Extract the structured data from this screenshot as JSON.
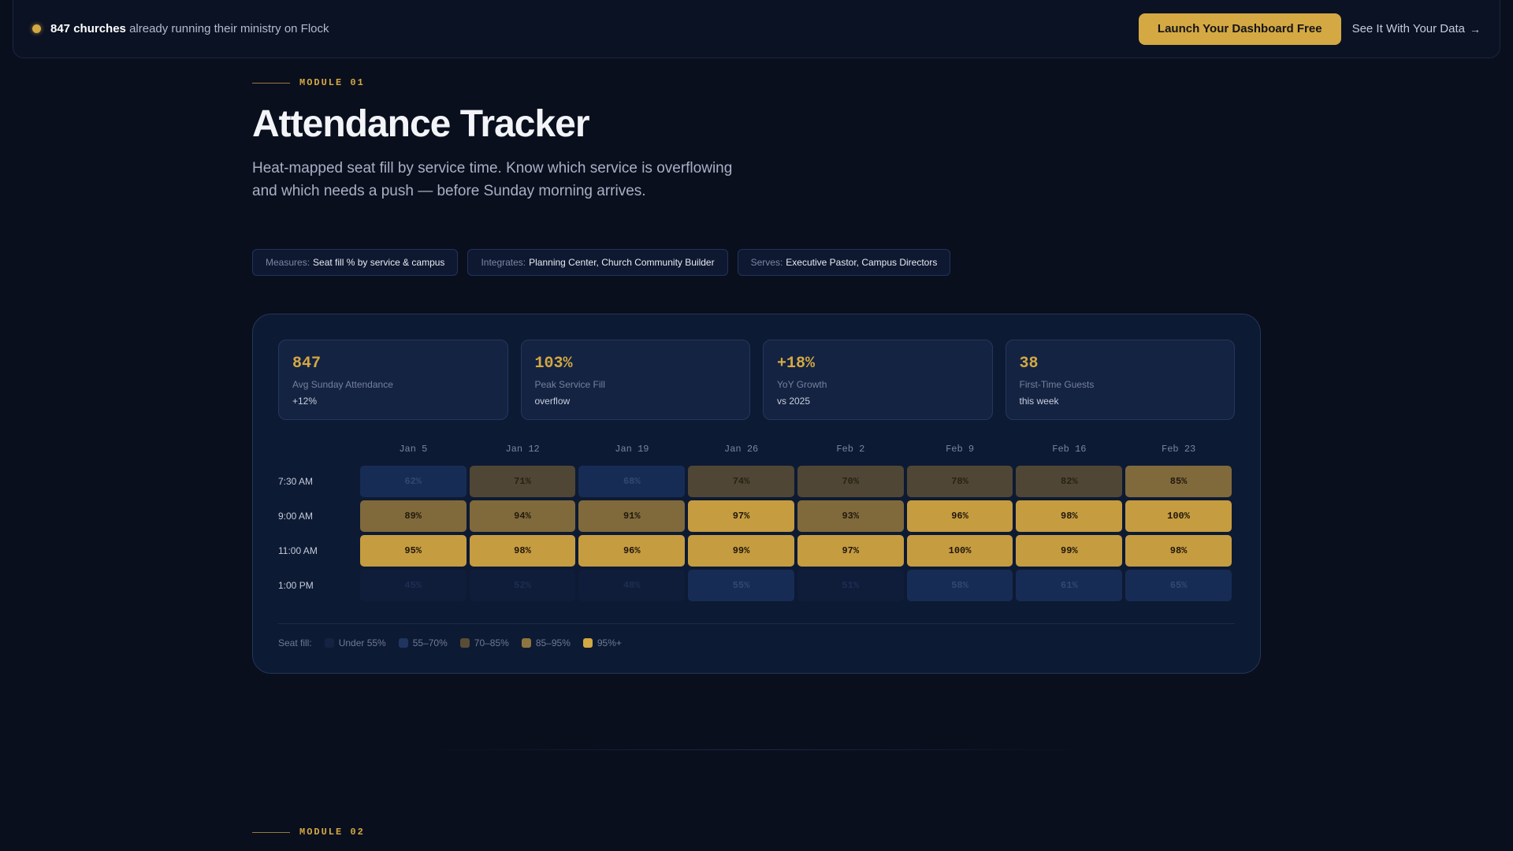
{
  "banner": {
    "count_text": "847 churches",
    "message": "already running their ministry on Flock",
    "cta_primary": "Launch Your Dashboard Free",
    "cta_secondary": "See It With Your Data",
    "arrow": "→"
  },
  "module1": {
    "tag": "MODULE 01",
    "title": "Attendance Tracker",
    "subtitle": "Heat-mapped seat fill by service time. Know which service is overflowing and which needs a push — before Sunday morning arrives.",
    "pills": [
      {
        "key": "Measures:",
        "value": "Seat fill % by service & campus"
      },
      {
        "key": "Integrates:",
        "value": "Planning Center, Church Community Builder"
      },
      {
        "key": "Serves:",
        "value": "Executive Pastor, Campus Directors"
      }
    ]
  },
  "stats": [
    {
      "value": "847",
      "label": "Avg Sunday Attendance",
      "note": "+12%"
    },
    {
      "value": "103%",
      "label": "Peak Service Fill",
      "note": "overflow"
    },
    {
      "value": "+18%",
      "label": "YoY Growth",
      "note": "vs 2025"
    },
    {
      "value": "38",
      "label": "First-Time Guests",
      "note": "this week"
    }
  ],
  "heatmap": {
    "columns": [
      "Jan 5",
      "Jan 12",
      "Jan 19",
      "Jan 26",
      "Feb 2",
      "Feb 9",
      "Feb 16",
      "Feb 23"
    ],
    "rows": [
      {
        "time": "7:30 AM",
        "cells": [
          {
            "text": "62%",
            "level": 2
          },
          {
            "text": "71%",
            "level": 3
          },
          {
            "text": "68%",
            "level": 2
          },
          {
            "text": "74%",
            "level": 3
          },
          {
            "text": "70%",
            "level": 3
          },
          {
            "text": "78%",
            "level": 3
          },
          {
            "text": "82%",
            "level": 3
          },
          {
            "text": "85%",
            "level": 4
          }
        ]
      },
      {
        "time": "9:00 AM",
        "cells": [
          {
            "text": "89%",
            "level": 4
          },
          {
            "text": "94%",
            "level": 4
          },
          {
            "text": "91%",
            "level": 4
          },
          {
            "text": "97%",
            "level": 5
          },
          {
            "text": "93%",
            "level": 4
          },
          {
            "text": "96%",
            "level": 5
          },
          {
            "text": "98%",
            "level": 5
          },
          {
            "text": "100%",
            "level": 5
          }
        ]
      },
      {
        "time": "11:00 AM",
        "cells": [
          {
            "text": "95%",
            "level": 5
          },
          {
            "text": "98%",
            "level": 5
          },
          {
            "text": "96%",
            "level": 5
          },
          {
            "text": "99%",
            "level": 5
          },
          {
            "text": "97%",
            "level": 5
          },
          {
            "text": "100%",
            "level": 5
          },
          {
            "text": "99%",
            "level": 5
          },
          {
            "text": "98%",
            "level": 5
          }
        ]
      },
      {
        "time": "1:00 PM",
        "cells": [
          {
            "text": "45%",
            "level": 1
          },
          {
            "text": "52%",
            "level": 1
          },
          {
            "text": "48%",
            "level": 1
          },
          {
            "text": "55%",
            "level": 2
          },
          {
            "text": "51%",
            "level": 1
          },
          {
            "text": "58%",
            "level": 2
          },
          {
            "text": "61%",
            "level": 2
          },
          {
            "text": "65%",
            "level": 2
          }
        ]
      }
    ]
  },
  "legend": {
    "title": "Seat fill:",
    "items": [
      "Under 55%",
      "55–70%",
      "70–85%",
      "85–95%",
      "95%+"
    ]
  },
  "module2": {
    "tag": "MODULE 02"
  },
  "colors": {
    "accent": "#d4a843",
    "background": "#0a0f1e",
    "card": "#0d1a33"
  }
}
